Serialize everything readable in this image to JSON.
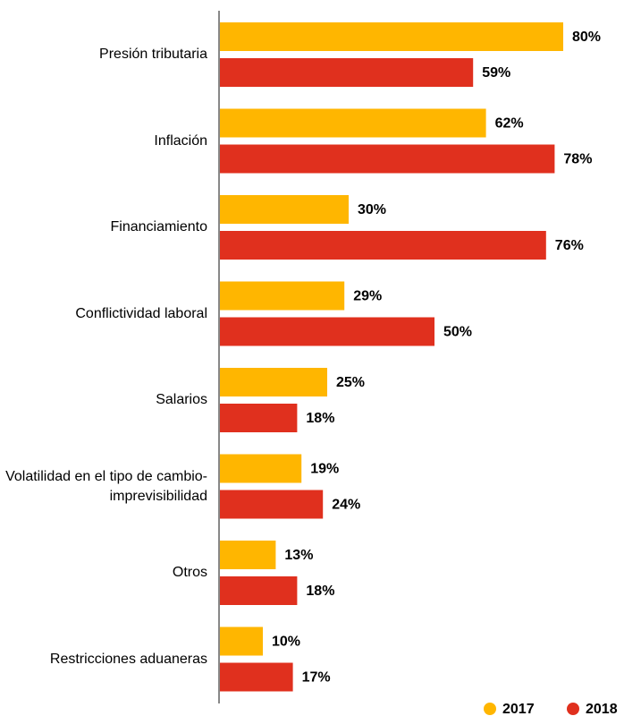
{
  "chart_data": {
    "type": "bar",
    "orientation": "horizontal",
    "categories": [
      "Presión tributaria",
      "Inflación",
      "Financiamiento",
      "Conflictividad laboral",
      "Salarios",
      "Volatilidad en el tipo de cambio-imprevisibilidad",
      "Otros",
      "Restricciones aduaneras"
    ],
    "series": [
      {
        "name": "2017",
        "color": "#FFB600",
        "values": [
          80,
          62,
          30,
          29,
          25,
          19,
          13,
          10
        ],
        "value_labels": [
          "80%",
          "62%",
          "30%",
          "29%",
          "25%",
          "19%",
          "13%",
          "10%"
        ]
      },
      {
        "name": "2018",
        "color": "#E0301E",
        "values": [
          59,
          78,
          76,
          50,
          18,
          24,
          18,
          17
        ],
        "value_labels": [
          "59%",
          "78%",
          "76%",
          "50%",
          "18%",
          "24%",
          "18%",
          "17%"
        ]
      }
    ],
    "legend": "bottom-right"
  }
}
